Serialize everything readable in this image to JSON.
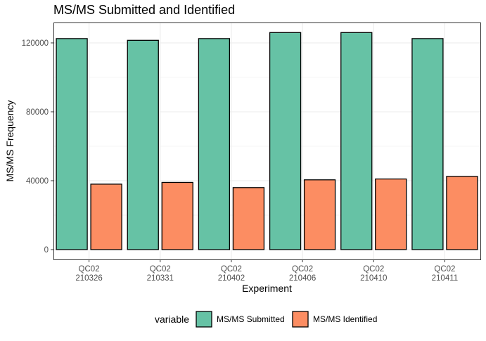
{
  "chart_data": {
    "type": "bar",
    "title": "MS/MS Submitted and Identified",
    "xlabel": "Experiment",
    "ylabel": "MS/MS Frequency",
    "categories": [
      [
        "QC02",
        "210326"
      ],
      [
        "QC02",
        "210331"
      ],
      [
        "QC02",
        "210402"
      ],
      [
        "QC02",
        "210406"
      ],
      [
        "QC02",
        "210410"
      ],
      [
        "QC02",
        "210411"
      ]
    ],
    "series": [
      {
        "name": "MS/MS Submitted",
        "color": "#66c2a5",
        "values": [
          122500,
          121500,
          122500,
          126000,
          126000,
          122500
        ]
      },
      {
        "name": "MS/MS Identified",
        "color": "#fc8d62",
        "values": [
          38000,
          39000,
          36000,
          40500,
          41000,
          42500
        ]
      }
    ],
    "ylim": [
      -3000,
      132000
    ],
    "yticks": [
      0,
      40000,
      80000,
      120000
    ],
    "grid": true,
    "legend": {
      "title": "variable",
      "position": "bottom"
    }
  }
}
